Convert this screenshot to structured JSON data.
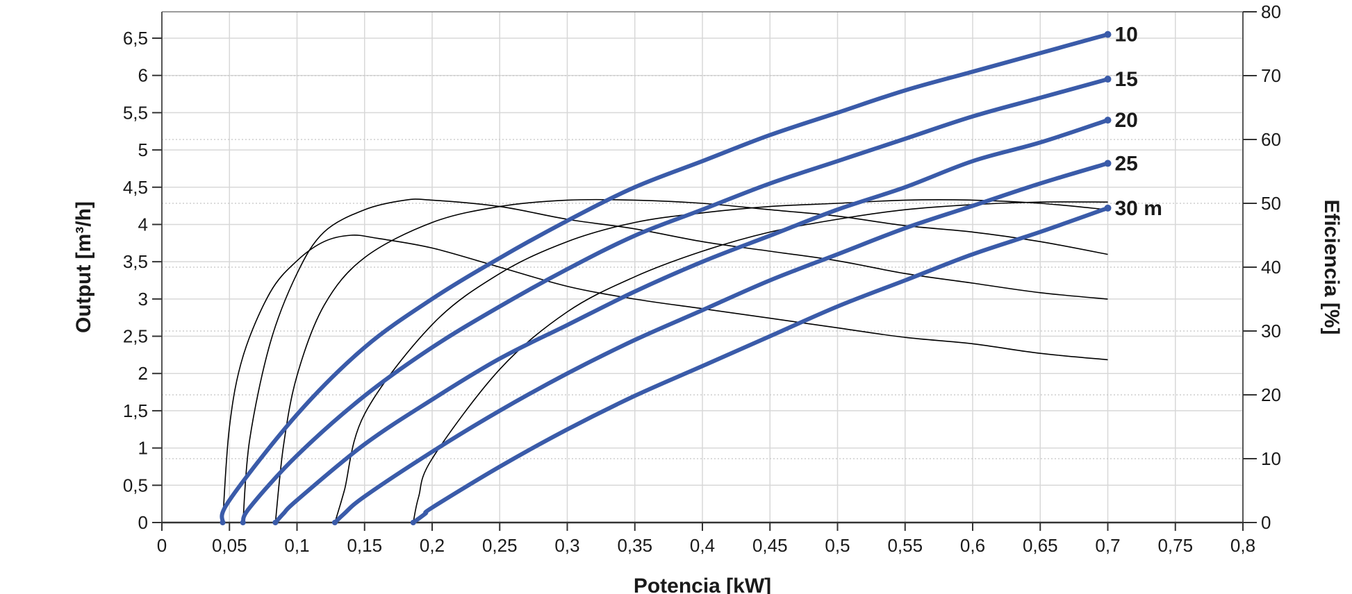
{
  "chart_data": {
    "type": "line",
    "xlabel": "Potencia [kW]",
    "ylabel": "Output [m³/h]",
    "y2label": "Eficiencia [%]",
    "xlim": [
      0,
      0.8
    ],
    "ylim": [
      0,
      6.5
    ],
    "y2lim": [
      0,
      80
    ],
    "grid": true,
    "x_ticks": [
      0,
      0.05,
      0.1,
      0.15,
      0.2,
      0.25,
      0.3,
      0.35,
      0.4,
      0.45,
      0.5,
      0.55,
      0.6,
      0.65,
      0.7,
      0.75,
      0.8
    ],
    "x_tick_labels": [
      "0",
      "0,05",
      "0,1",
      "0,15",
      "0,2",
      "0,25",
      "0,3",
      "0,35",
      "0,4",
      "0,45",
      "0,5",
      "0,55",
      "0,6",
      "0,65",
      "0,7",
      "0,75",
      "0,8"
    ],
    "y_ticks": [
      0,
      0.5,
      1,
      1.5,
      2,
      2.5,
      3,
      3.5,
      4,
      4.5,
      5,
      5.5,
      6,
      6.5
    ],
    "y_tick_labels": [
      "0",
      "0,5",
      "1",
      "1,5",
      "2",
      "2,5",
      "3",
      "3,5",
      "4",
      "4,5",
      "5",
      "5,5",
      "6",
      "6,5"
    ],
    "y2_ticks": [
      0,
      10,
      20,
      30,
      40,
      50,
      60,
      70,
      80
    ],
    "y2_tick_labels": [
      "0",
      "10",
      "20",
      "30",
      "40",
      "50",
      "60",
      "70",
      "80"
    ],
    "series": [
      {
        "name": "10",
        "axis": "left",
        "color": "#3a5ba9",
        "points": [
          [
            0.045,
            0
          ],
          [
            0.05,
            0.3
          ],
          [
            0.1,
            1.45
          ],
          [
            0.15,
            2.35
          ],
          [
            0.2,
            3.0
          ],
          [
            0.25,
            3.55
          ],
          [
            0.3,
            4.05
          ],
          [
            0.35,
            4.5
          ],
          [
            0.4,
            4.85
          ],
          [
            0.45,
            5.2
          ],
          [
            0.5,
            5.5
          ],
          [
            0.55,
            5.8
          ],
          [
            0.6,
            6.05
          ],
          [
            0.65,
            6.3
          ],
          [
            0.7,
            6.55
          ]
        ]
      },
      {
        "name": "15",
        "axis": "left",
        "color": "#3a5ba9",
        "points": [
          [
            0.06,
            0
          ],
          [
            0.065,
            0.2
          ],
          [
            0.1,
            0.9
          ],
          [
            0.15,
            1.7
          ],
          [
            0.2,
            2.35
          ],
          [
            0.25,
            2.9
          ],
          [
            0.3,
            3.4
          ],
          [
            0.35,
            3.85
          ],
          [
            0.4,
            4.2
          ],
          [
            0.45,
            4.55
          ],
          [
            0.5,
            4.85
          ],
          [
            0.55,
            5.15
          ],
          [
            0.6,
            5.45
          ],
          [
            0.65,
            5.7
          ],
          [
            0.7,
            5.95
          ]
        ]
      },
      {
        "name": "20",
        "axis": "left",
        "color": "#3a5ba9",
        "points": [
          [
            0.084,
            0
          ],
          [
            0.09,
            0.12
          ],
          [
            0.1,
            0.3
          ],
          [
            0.15,
            1.05
          ],
          [
            0.2,
            1.65
          ],
          [
            0.25,
            2.2
          ],
          [
            0.3,
            2.65
          ],
          [
            0.35,
            3.1
          ],
          [
            0.4,
            3.5
          ],
          [
            0.45,
            3.85
          ],
          [
            0.5,
            4.2
          ],
          [
            0.55,
            4.5
          ],
          [
            0.6,
            4.85
          ],
          [
            0.65,
            5.1
          ],
          [
            0.7,
            5.4
          ]
        ]
      },
      {
        "name": "25",
        "axis": "left",
        "color": "#3a5ba9",
        "points": [
          [
            0.128,
            0
          ],
          [
            0.135,
            0.12
          ],
          [
            0.15,
            0.35
          ],
          [
            0.2,
            0.95
          ],
          [
            0.25,
            1.5
          ],
          [
            0.3,
            2.0
          ],
          [
            0.35,
            2.45
          ],
          [
            0.4,
            2.85
          ],
          [
            0.45,
            3.25
          ],
          [
            0.5,
            3.6
          ],
          [
            0.55,
            3.95
          ],
          [
            0.6,
            4.25
          ],
          [
            0.65,
            4.55
          ],
          [
            0.7,
            4.82
          ]
        ]
      },
      {
        "name": "30 m",
        "axis": "left",
        "color": "#3a5ba9",
        "points": [
          [
            0.186,
            0
          ],
          [
            0.195,
            0.12
          ],
          [
            0.2,
            0.2
          ],
          [
            0.25,
            0.75
          ],
          [
            0.3,
            1.25
          ],
          [
            0.35,
            1.7
          ],
          [
            0.4,
            2.1
          ],
          [
            0.45,
            2.5
          ],
          [
            0.5,
            2.9
          ],
          [
            0.55,
            3.25
          ],
          [
            0.6,
            3.6
          ],
          [
            0.65,
            3.9
          ],
          [
            0.7,
            4.22
          ]
        ]
      },
      {
        "axis": "right",
        "color": "#000000",
        "points": [
          [
            0.045,
            0
          ],
          [
            0.05,
            15
          ],
          [
            0.06,
            26
          ],
          [
            0.08,
            36
          ],
          [
            0.1,
            41
          ],
          [
            0.12,
            44
          ],
          [
            0.14,
            45
          ],
          [
            0.16,
            44.5
          ],
          [
            0.2,
            43
          ],
          [
            0.25,
            40
          ],
          [
            0.3,
            37
          ],
          [
            0.35,
            35
          ],
          [
            0.4,
            33.5
          ],
          [
            0.45,
            32
          ],
          [
            0.5,
            30.5
          ],
          [
            0.55,
            29
          ],
          [
            0.6,
            28
          ],
          [
            0.65,
            26.5
          ],
          [
            0.7,
            25.5
          ]
        ]
      },
      {
        "axis": "right",
        "color": "#000000",
        "points": [
          [
            0.06,
            0
          ],
          [
            0.065,
            13
          ],
          [
            0.08,
            28
          ],
          [
            0.1,
            39
          ],
          [
            0.12,
            45.5
          ],
          [
            0.15,
            49
          ],
          [
            0.18,
            50.5
          ],
          [
            0.2,
            50.5
          ],
          [
            0.25,
            49.5
          ],
          [
            0.3,
            47.5
          ],
          [
            0.35,
            46
          ],
          [
            0.4,
            44
          ],
          [
            0.45,
            42.5
          ],
          [
            0.5,
            41
          ],
          [
            0.55,
            39
          ],
          [
            0.6,
            37.5
          ],
          [
            0.65,
            36
          ],
          [
            0.7,
            35
          ]
        ]
      },
      {
        "axis": "right",
        "color": "#000000",
        "points": [
          [
            0.084,
            0
          ],
          [
            0.09,
            12
          ],
          [
            0.1,
            23
          ],
          [
            0.12,
            34
          ],
          [
            0.15,
            41.5
          ],
          [
            0.2,
            47
          ],
          [
            0.25,
            49.5
          ],
          [
            0.3,
            50.5
          ],
          [
            0.35,
            50.5
          ],
          [
            0.4,
            50
          ],
          [
            0.45,
            49
          ],
          [
            0.5,
            48
          ],
          [
            0.55,
            46.5
          ],
          [
            0.6,
            45.5
          ],
          [
            0.65,
            44
          ],
          [
            0.7,
            42
          ]
        ]
      },
      {
        "axis": "right",
        "color": "#000000",
        "points": [
          [
            0.128,
            0
          ],
          [
            0.135,
            5
          ],
          [
            0.15,
            17
          ],
          [
            0.2,
            31
          ],
          [
            0.25,
            39
          ],
          [
            0.3,
            44
          ],
          [
            0.35,
            47
          ],
          [
            0.4,
            48.5
          ],
          [
            0.45,
            49.5
          ],
          [
            0.5,
            50
          ],
          [
            0.55,
            50.5
          ],
          [
            0.6,
            50.5
          ],
          [
            0.65,
            50
          ],
          [
            0.7,
            49
          ]
        ]
      },
      {
        "axis": "right",
        "color": "#000000",
        "points": [
          [
            0.186,
            0
          ],
          [
            0.19,
            4
          ],
          [
            0.2,
            10
          ],
          [
            0.25,
            24
          ],
          [
            0.3,
            33
          ],
          [
            0.35,
            38.5
          ],
          [
            0.4,
            42.5
          ],
          [
            0.45,
            45.5
          ],
          [
            0.5,
            47.5
          ],
          [
            0.55,
            49
          ],
          [
            0.6,
            49.8
          ],
          [
            0.65,
            50.2
          ],
          [
            0.7,
            50.2
          ]
        ]
      }
    ]
  }
}
